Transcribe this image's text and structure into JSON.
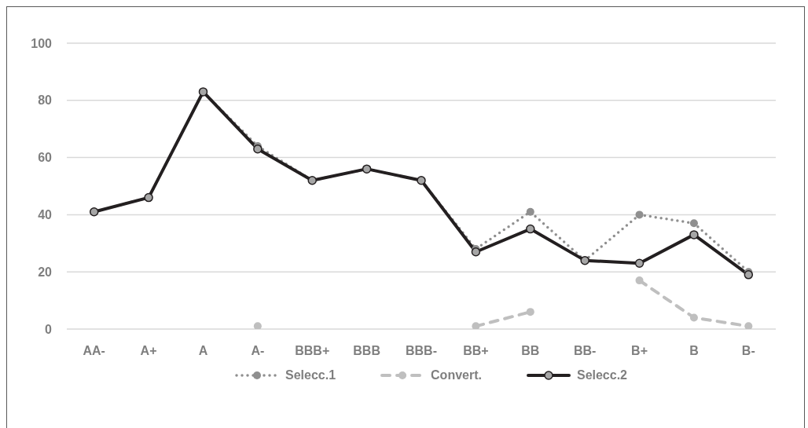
{
  "chart_data": {
    "type": "line",
    "categories": [
      "AA-",
      "A+",
      "A",
      "A-",
      "BBB+",
      "BBB",
      "BBB-",
      "BB+",
      "BB",
      "BB-",
      "B+",
      "B",
      "B-"
    ],
    "series": [
      {
        "name": "Selecc.1",
        "color": "#8f8f8f",
        "line_style": "dotted",
        "values": [
          41,
          46,
          83,
          64,
          52,
          56,
          52,
          28,
          41,
          24,
          40,
          37,
          20
        ]
      },
      {
        "name": "Convert.",
        "color": "#bfbfbf",
        "line_style": "dashed",
        "values": [
          null,
          null,
          null,
          1,
          null,
          null,
          null,
          1,
          6,
          null,
          17,
          4,
          1
        ]
      },
      {
        "name": "Selecc.2",
        "color": "#231f20",
        "line_style": "solid",
        "values": [
          41,
          46,
          83,
          63,
          52,
          56,
          52,
          27,
          35,
          24,
          23,
          33,
          19
        ]
      }
    ],
    "ylim": [
      0,
      100
    ],
    "yticks": [
      0,
      20,
      40,
      60,
      80,
      100
    ],
    "grid": "y",
    "legend": "bottom",
    "marker": "circle"
  }
}
